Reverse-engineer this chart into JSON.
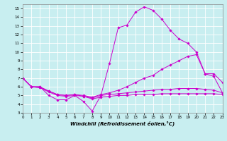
{
  "xlabel": "Windchill (Refroidissement éolien,°C)",
  "xlim": [
    0,
    23
  ],
  "ylim": [
    3,
    15.5
  ],
  "xticks": [
    0,
    1,
    2,
    3,
    4,
    5,
    6,
    7,
    8,
    9,
    10,
    11,
    12,
    13,
    14,
    15,
    16,
    17,
    18,
    19,
    20,
    21,
    22,
    23
  ],
  "yticks": [
    3,
    4,
    5,
    6,
    7,
    8,
    9,
    10,
    11,
    12,
    13,
    14,
    15
  ],
  "bg_color": "#c8eef0",
  "line_color": "#cc00cc",
  "grid_color": "#ffffff",
  "lines": [
    {
      "x": [
        0,
        1,
        2,
        3,
        4,
        5,
        6,
        7,
        8,
        9,
        10,
        11,
        12,
        13,
        14,
        15,
        16,
        17,
        18,
        19,
        20,
        21,
        22,
        23
      ],
      "y": [
        7.0,
        6.0,
        6.0,
        5.0,
        4.5,
        4.5,
        5.0,
        4.3,
        3.2,
        5.0,
        8.7,
        12.8,
        13.1,
        14.6,
        15.2,
        14.8,
        13.8,
        12.5,
        11.5,
        11.0,
        10.0,
        7.5,
        7.5,
        6.5
      ]
    },
    {
      "x": [
        0,
        1,
        2,
        3,
        4,
        5,
        6,
        7,
        8,
        9,
        10,
        11,
        12,
        13,
        14,
        15,
        16,
        17,
        18,
        19,
        20,
        21,
        22,
        23
      ],
      "y": [
        7.0,
        6.0,
        6.0,
        5.5,
        5.1,
        5.0,
        5.1,
        5.0,
        4.8,
        5.1,
        5.3,
        5.6,
        6.0,
        6.5,
        7.0,
        7.3,
        8.0,
        8.5,
        9.0,
        9.5,
        9.7,
        7.5,
        7.2,
        5.3
      ]
    },
    {
      "x": [
        0,
        1,
        2,
        3,
        4,
        5,
        6,
        7,
        8,
        9,
        10,
        11,
        12,
        13,
        14,
        15,
        16,
        17,
        18,
        19,
        20,
        21,
        22,
        23
      ],
      "y": [
        7.0,
        6.0,
        5.9,
        5.5,
        5.1,
        5.0,
        5.1,
        4.9,
        4.7,
        5.0,
        5.1,
        5.2,
        5.3,
        5.4,
        5.5,
        5.6,
        5.7,
        5.7,
        5.8,
        5.8,
        5.8,
        5.7,
        5.6,
        5.3
      ]
    },
    {
      "x": [
        0,
        1,
        2,
        3,
        4,
        5,
        6,
        7,
        8,
        9,
        10,
        11,
        12,
        13,
        14,
        15,
        16,
        17,
        18,
        19,
        20,
        21,
        22,
        23
      ],
      "y": [
        7.0,
        6.0,
        5.9,
        5.4,
        5.0,
        4.9,
        5.0,
        4.9,
        4.6,
        4.8,
        4.9,
        5.0,
        5.0,
        5.1,
        5.1,
        5.1,
        5.2,
        5.2,
        5.2,
        5.2,
        5.2,
        5.2,
        5.2,
        5.1
      ]
    }
  ]
}
